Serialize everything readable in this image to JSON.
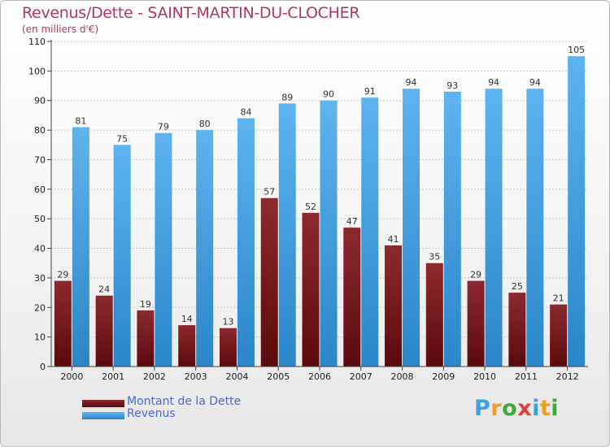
{
  "chart_data": {
    "type": "bar",
    "title": "Revenus/Dette - SAINT-MARTIN-DU-CLOCHER",
    "subtitle": "(en milliers d'€)",
    "categories": [
      "2000",
      "2001",
      "2002",
      "2003",
      "2004",
      "2005",
      "2006",
      "2007",
      "2008",
      "2009",
      "2010",
      "2011",
      "2012"
    ],
    "series": [
      {
        "name": "Montant de la Dette",
        "color": "#7a1e22",
        "values": [
          29,
          24,
          19,
          14,
          13,
          57,
          52,
          47,
          41,
          35,
          29,
          25,
          21
        ]
      },
      {
        "name": "Revenus",
        "color": "#3f9fe0",
        "values": [
          81,
          75,
          79,
          80,
          84,
          89,
          90,
          91,
          94,
          93,
          94,
          94,
          105
        ]
      }
    ],
    "ylim": [
      0,
      110
    ],
    "yticks": [
      0,
      10,
      20,
      30,
      40,
      50,
      60,
      70,
      80,
      90,
      100,
      110
    ],
    "xlabel": "",
    "ylabel": "",
    "grid": true,
    "legend_position": "bottom-left"
  },
  "logo": {
    "text": "Proxiti",
    "letters": [
      "P",
      "r",
      "o",
      "x",
      "i",
      "t",
      "i"
    ],
    "colors": [
      "#3f9fe0",
      "#f0a020",
      "#3aaa3a",
      "#e04040",
      "#3f9fe0",
      "#f0a020",
      "#3aaa3a"
    ]
  }
}
